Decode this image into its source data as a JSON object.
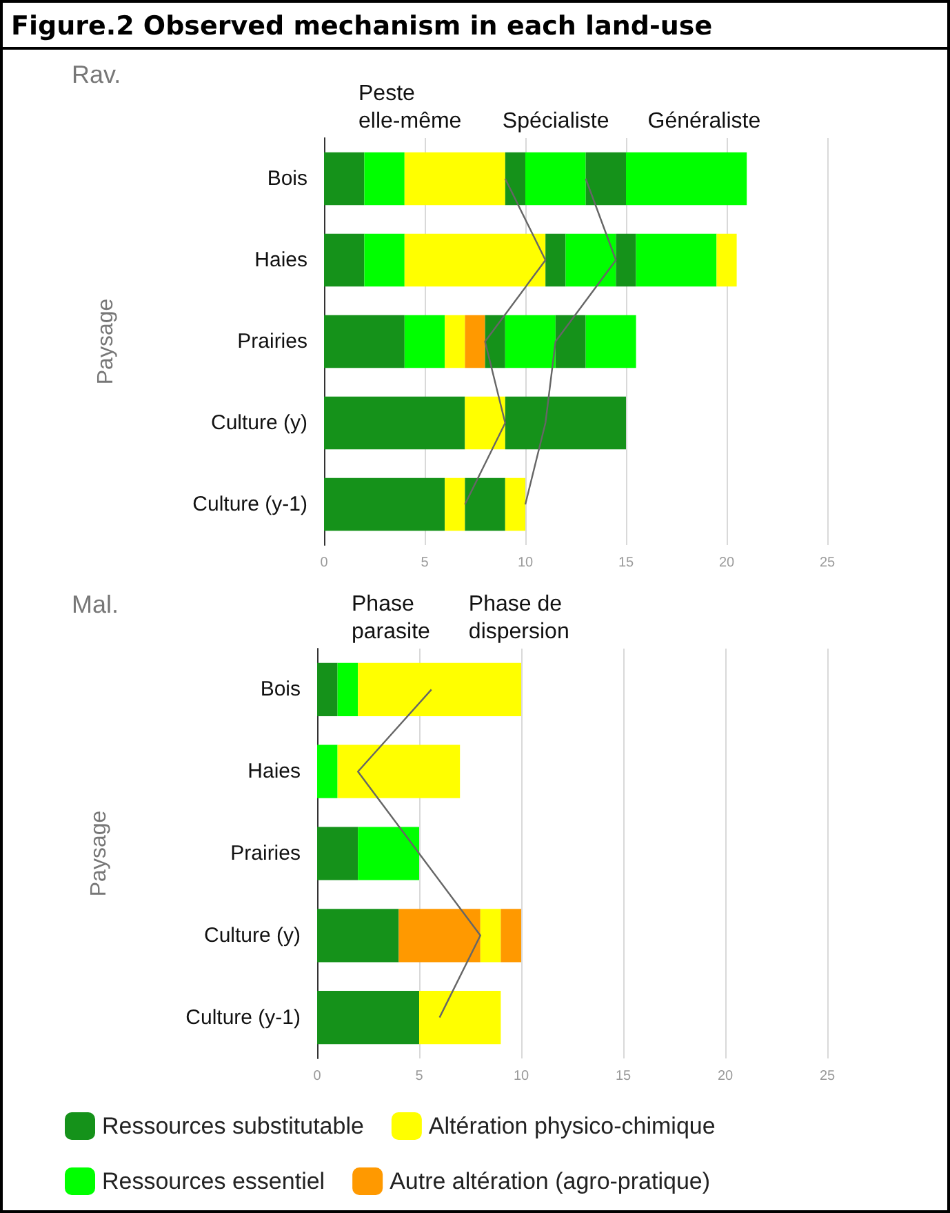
{
  "chart_data": [
    {
      "type": "bar",
      "orientation": "horizontal",
      "stacked": true,
      "title": "Figure.2 Observed mechanism in each land-use",
      "subtitle": "Rav.",
      "ylabel": "Paysage",
      "categories": [
        "Bois",
        "Haies",
        "Prairies",
        "Culture (y)",
        "Culture (y-1)"
      ],
      "xlim": [
        0,
        25
      ],
      "xticks": [
        0,
        5,
        10,
        15,
        20,
        25
      ],
      "grid": "x",
      "legend": false,
      "annotations": [
        "Peste\nelle-même",
        "Spécialiste",
        "Généraliste"
      ],
      "series": [
        {
          "color": "#15921a",
          "values": [
            2,
            2,
            4,
            7,
            6
          ]
        },
        {
          "color": "#00ff00",
          "values": [
            2,
            2,
            2,
            null,
            null
          ]
        },
        {
          "color": "#ffff00",
          "values": [
            5,
            7,
            1,
            2,
            1
          ]
        },
        {
          "color": "#ff9900",
          "values": [
            null,
            null,
            1,
            null,
            null
          ]
        },
        {
          "color": "#15921a",
          "values": [
            1,
            1,
            1,
            6,
            2
          ]
        },
        {
          "color": "#00ff00",
          "values": [
            3,
            2.5,
            2.5,
            null,
            null
          ]
        },
        {
          "color": "#ffff00",
          "values": [
            null,
            null,
            null,
            null,
            1
          ]
        },
        {
          "color": "#15921a",
          "values": [
            2,
            1,
            1.5,
            null,
            null
          ]
        },
        {
          "color": "#00ff00",
          "values": [
            6,
            4,
            2.5,
            null,
            null
          ]
        },
        {
          "color": "#ffff00",
          "values": [
            null,
            1,
            null,
            null,
            null
          ]
        },
        {
          "type": "line",
          "color": "#666666",
          "values": [
            9,
            11,
            8,
            9,
            7
          ]
        },
        {
          "type": "line",
          "color": "#666666",
          "values": [
            13,
            14.5,
            11.5,
            11,
            10
          ]
        }
      ]
    },
    {
      "type": "bar",
      "orientation": "horizontal",
      "stacked": true,
      "subtitle": "Mal.",
      "ylabel": "Paysage",
      "categories": [
        "Bois",
        "Haies",
        "Prairies",
        "Culture (y)",
        "Culture (y-1)"
      ],
      "xlim": [
        0,
        25
      ],
      "xticks": [
        0,
        5,
        10,
        15,
        20,
        25
      ],
      "grid": "x",
      "legend": "bottom",
      "annotations": [
        "Phase\nparasite",
        "Phase de\ndispersion"
      ],
      "series": [
        {
          "name": "Ressources substitutable",
          "color": "#15921a",
          "values": [
            1,
            null,
            2,
            4,
            5
          ]
        },
        {
          "name": "Ressources essentiel",
          "color": "#00ff00",
          "values": [
            1,
            1,
            3,
            null,
            null
          ]
        },
        {
          "name": "Altération physico-chimique",
          "color": "#ffff00",
          "values": [
            8,
            6,
            null,
            null,
            4
          ]
        },
        {
          "name": "Autre altération (agro-pratique)",
          "color": "#ff9900",
          "values": [
            null,
            null,
            null,
            4,
            null
          ]
        },
        {
          "color": "#ffff00",
          "values": [
            null,
            null,
            null,
            1,
            null
          ]
        },
        {
          "color": "#ff9900",
          "values": [
            null,
            null,
            null,
            1,
            null
          ]
        },
        {
          "type": "line",
          "color": "#666666",
          "values": [
            5.6,
            2,
            5,
            8,
            6
          ]
        }
      ]
    }
  ]
}
